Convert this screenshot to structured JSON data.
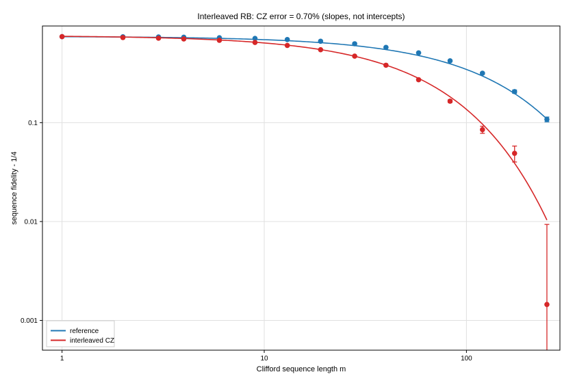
{
  "chart_data": {
    "type": "scatter",
    "title": "Interleaved RB: CZ error = 0.70% (slopes, not intercepts)",
    "xlabel": "Clifford sequence length m",
    "ylabel": "sequence fidelity - 1/4",
    "xscale": "log",
    "yscale": "log",
    "xlim": [
      0.8,
      290
    ],
    "ylim": [
      0.0005,
      0.95
    ],
    "grid": true,
    "legend_position": "bottom-left",
    "x_ticks": [
      {
        "value": 1,
        "label": "1"
      },
      {
        "value": 10,
        "label": "10"
      },
      {
        "value": 100,
        "label": "100"
      }
    ],
    "y_ticks": [
      {
        "value": 0.001,
        "label": "0.001"
      },
      {
        "value": 0.01,
        "label": "0.01"
      },
      {
        "value": 0.1,
        "label": "0.1"
      }
    ],
    "series": [
      {
        "name": "reference",
        "color": "#1f77b4",
        "x": [
          1,
          2,
          3,
          4,
          6,
          9,
          13,
          19,
          28,
          40,
          58,
          83,
          120,
          173,
          250
        ],
        "y": [
          0.741,
          0.738,
          0.735,
          0.731,
          0.723,
          0.711,
          0.693,
          0.666,
          0.628,
          0.577,
          0.508,
          0.422,
          0.316,
          0.206,
          0.108
        ],
        "yerr": [
          0.004,
          0.004,
          0.004,
          0.004,
          0.004,
          0.004,
          0.004,
          0.005,
          0.005,
          0.005,
          0.006,
          0.006,
          0.007,
          0.008,
          0.006
        ],
        "fit": {
          "A": 0.746,
          "p": 0.99233
        }
      },
      {
        "name": "interleaved CZ",
        "color": "#d62728",
        "x": [
          1,
          2,
          3,
          4,
          6,
          9,
          13,
          19,
          28,
          40,
          58,
          83,
          120,
          173,
          250
        ],
        "y": [
          0.741,
          0.726,
          0.715,
          0.703,
          0.681,
          0.648,
          0.604,
          0.547,
          0.471,
          0.381,
          0.272,
          0.165,
          0.085,
          0.049,
          0.00145
        ],
        "yerr": [
          0.004,
          0.004,
          0.004,
          0.004,
          0.004,
          0.004,
          0.004,
          0.005,
          0.005,
          0.005,
          0.005,
          0.005,
          0.007,
          0.009,
          0.0079
        ],
        "fit": {
          "A": 0.76,
          "p": 0.98296
        }
      }
    ]
  }
}
